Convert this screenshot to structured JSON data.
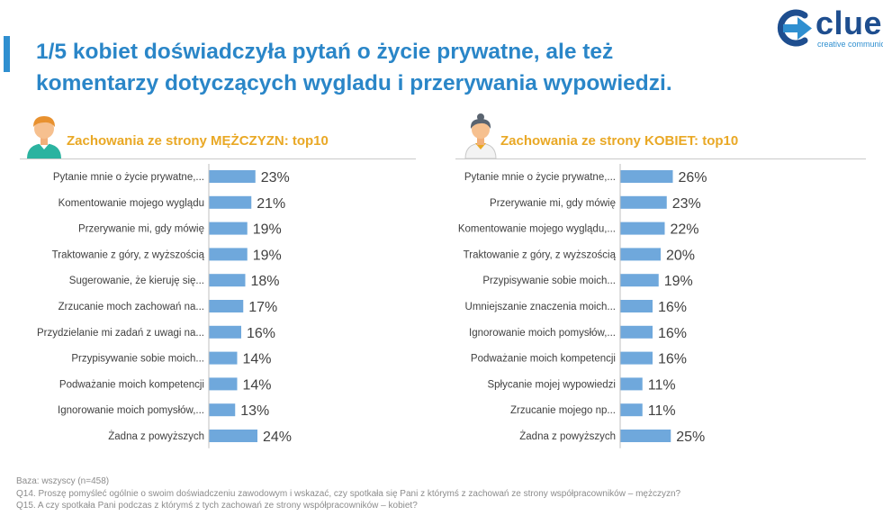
{
  "title_line1": "1/5 kobiet doświadczyła pytań o życie prywatne, ale też",
  "title_line2": "komentarzy dotyczących wygladu i przerywania wypowiedzi.",
  "logo": {
    "text": "clue",
    "tagline": "creative communication",
    "icon": "arrow-logo-icon",
    "colors": {
      "arrow": "#2f8fd0",
      "ring": "#1e4e8f"
    }
  },
  "panels": {
    "men": {
      "title": "Zachowania ze strony MĘŻCZYZN: top10",
      "icon": "male-avatar-icon"
    },
    "women": {
      "title": "Zachowania ze strony KOBIET: top10",
      "icon": "female-avatar-icon"
    }
  },
  "colors": {
    "bar": "#6fa8dc",
    "title": "#2a86c8",
    "panel_title": "#e9a825"
  },
  "chart_data": [
    {
      "type": "bar",
      "orientation": "horizontal",
      "title": "Zachowania ze strony MĘŻCZYZN: top10",
      "categories": [
        "Pytanie mnie o życie prywatne,...",
        "Komentowanie mojego wyglądu",
        "Przerywanie mi, gdy mówię",
        "Traktowanie z góry, z wyższością",
        "Sugerowanie, że kieruję się...",
        "Zrzucanie moch zachowań na...",
        "Przydzielanie mi zadań z uwagi na...",
        "Przypisywanie sobie moich...",
        "Podważanie moich kompetencji",
        "Ignorowanie moich pomysłów,...",
        "Żadna z powyższych"
      ],
      "values": [
        23,
        21,
        19,
        19,
        18,
        17,
        16,
        14,
        14,
        13,
        24
      ],
      "value_labels": [
        "23%",
        "21%",
        "19%",
        "19%",
        "18%",
        "17%",
        "16%",
        "14%",
        "14%",
        "13%",
        "24%"
      ],
      "unit": "%"
    },
    {
      "type": "bar",
      "orientation": "horizontal",
      "title": "Zachowania ze strony KOBIET: top10",
      "categories": [
        "Pytanie mnie o życie prywatne,...",
        "Przerywanie mi, gdy mówię",
        "Komentowanie mojego wyglądu,...",
        "Traktowanie z góry, z wyższością",
        "Przypisywanie sobie moich...",
        "Umniejszanie znaczenia moich...",
        "Ignorowanie moich pomysłów,...",
        "Podważanie moich kompetencji",
        "Spłycanie mojej wypowiedzi",
        "Zrzucanie mojego np...",
        "Żadna z powyższych"
      ],
      "values": [
        26,
        23,
        22,
        20,
        19,
        16,
        16,
        16,
        11,
        11,
        25
      ],
      "value_labels": [
        "26%",
        "23%",
        "22%",
        "20%",
        "19%",
        "16%",
        "16%",
        "16%",
        "11%",
        "11%",
        "25%"
      ],
      "unit": "%"
    }
  ],
  "footer": {
    "base": "Baza: wszyscy (n=458)",
    "q14": "Q14. Proszę pomyśleć ogólnie o swoim doświadczeniu zawodowym i wskazać, czy spotkała się Pani z którymś z zachowań ze strony współpracowników – mężczyzn?",
    "q15": "Q15. A czy spotkała Pani podczas z którymś z tych zachowań ze strony współpracowników – kobiet?"
  }
}
